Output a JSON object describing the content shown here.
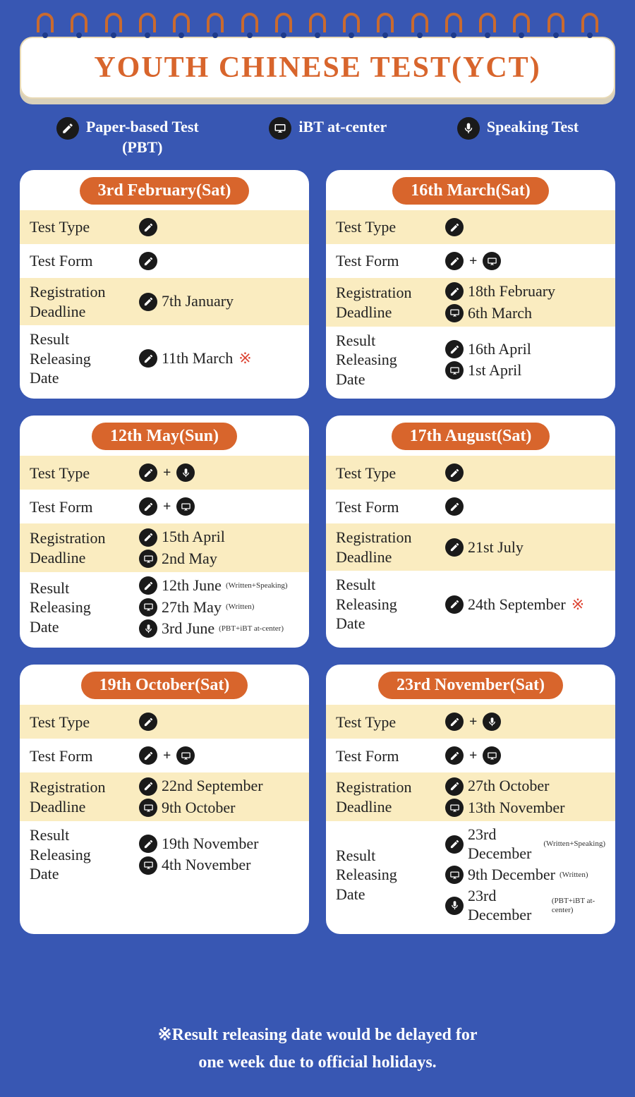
{
  "colors": {
    "background": "#3857b3",
    "accent": "#d8652c",
    "card_bg": "#ffffff",
    "row_alt_bg": "#faecc0",
    "icon_bg": "#1a1a1a",
    "asterisk": "#dd4433",
    "ring": "#c96a2f"
  },
  "title": "YOUTH CHINESE TEST(YCT)",
  "legend": {
    "pbt": "Paper-based Test\n(PBT)",
    "ibt": "iBT at-center",
    "speaking": "Speaking Test"
  },
  "row_labels": {
    "test_type": "Test Type",
    "test_form": "Test Form",
    "reg_deadline": "Registration\nDeadline",
    "result_date": "Result\nReleasing\nDate"
  },
  "footer": "※Result releasing date would be delayed for\none week due to official holidays.",
  "cards": [
    {
      "date": "3rd February(Sat)",
      "test_type": [
        "pbt"
      ],
      "test_form": [
        "pbt"
      ],
      "reg": [
        {
          "icon": "pbt",
          "text": "7th January"
        }
      ],
      "result": [
        {
          "icon": "pbt",
          "text": "11th March",
          "asterisk": true
        }
      ]
    },
    {
      "date": "16th March(Sat)",
      "test_type": [
        "pbt"
      ],
      "test_form": [
        "pbt",
        "ibt"
      ],
      "reg": [
        {
          "icon": "pbt",
          "text": "18th February"
        },
        {
          "icon": "ibt",
          "text": "6th March"
        }
      ],
      "result": [
        {
          "icon": "pbt",
          "text": "16th April"
        },
        {
          "icon": "ibt",
          "text": "1st April"
        }
      ]
    },
    {
      "date": "12th May(Sun)",
      "test_type": [
        "pbt",
        "speaking"
      ],
      "test_form": [
        "pbt",
        "ibt"
      ],
      "reg": [
        {
          "icon": "pbt",
          "text": "15th April"
        },
        {
          "icon": "ibt",
          "text": "2nd May"
        }
      ],
      "result": [
        {
          "icon": "pbt",
          "text": "12th June",
          "note": "(Written+Speaking)"
        },
        {
          "icon": "ibt",
          "text": "27th May",
          "note": "(Written)"
        },
        {
          "icon": "speaking",
          "text": "3rd June",
          "note": "(PBT+iBT at-center)"
        }
      ]
    },
    {
      "date": "17th August(Sat)",
      "test_type": [
        "pbt"
      ],
      "test_form": [
        "pbt"
      ],
      "reg": [
        {
          "icon": "pbt",
          "text": "21st July"
        }
      ],
      "result": [
        {
          "icon": "pbt",
          "text": "24th September",
          "asterisk": true
        }
      ]
    },
    {
      "date": "19th October(Sat)",
      "test_type": [
        "pbt"
      ],
      "test_form": [
        "pbt",
        "ibt"
      ],
      "reg": [
        {
          "icon": "pbt",
          "text": "22nd September"
        },
        {
          "icon": "ibt",
          "text": "9th October"
        }
      ],
      "result": [
        {
          "icon": "pbt",
          "text": "19th November"
        },
        {
          "icon": "ibt",
          "text": "4th November"
        }
      ]
    },
    {
      "date": "23rd November(Sat)",
      "test_type": [
        "pbt",
        "speaking"
      ],
      "test_form": [
        "pbt",
        "ibt"
      ],
      "reg": [
        {
          "icon": "pbt",
          "text": "27th October"
        },
        {
          "icon": "ibt",
          "text": "13th November"
        }
      ],
      "result": [
        {
          "icon": "pbt",
          "text": "23rd December",
          "note": "(Written+Speaking)"
        },
        {
          "icon": "ibt",
          "text": "9th December",
          "note": "(Written)"
        },
        {
          "icon": "speaking",
          "text": "23rd December",
          "note": "(PBT+iBT at-center)"
        }
      ]
    }
  ]
}
